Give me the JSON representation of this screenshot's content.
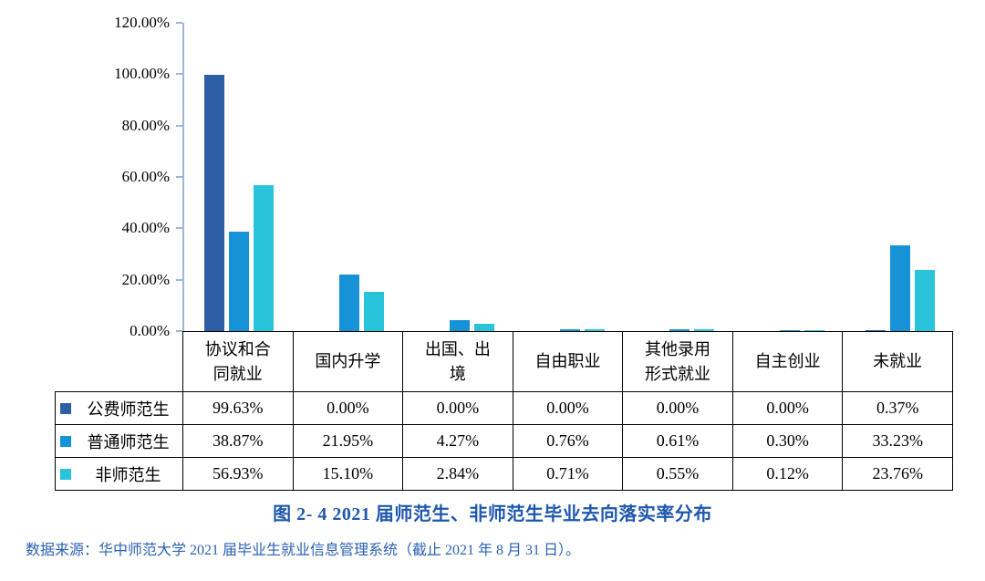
{
  "chart_data": {
    "type": "bar",
    "title": "图 2- 4  2021 届师范生、非师范生毕业去向落实率分布",
    "categories": [
      "协议和合同就业",
      "国内升学",
      "出国、出境",
      "自由职业",
      "其他录用形式就业",
      "自主创业",
      "未就业"
    ],
    "series": [
      {
        "name": "公费师范生",
        "color": "#2E5EA6",
        "values": [
          99.63,
          0.0,
          0.0,
          0.0,
          0.0,
          0.0,
          0.37
        ]
      },
      {
        "name": "普通师范生",
        "color": "#1693D6",
        "values": [
          38.87,
          21.95,
          4.27,
          0.76,
          0.61,
          0.3,
          33.23
        ]
      },
      {
        "name": "非师范生",
        "color": "#29C4DC",
        "values": [
          56.93,
          15.1,
          2.84,
          0.71,
          0.55,
          0.12,
          23.76
        ]
      }
    ],
    "ylim": [
      0,
      120
    ],
    "ytick_labels": [
      "120.00%",
      "100.00%",
      "80.00%",
      "60.00%",
      "40.00%",
      "20.00%",
      "0.00%"
    ],
    "grid": false,
    "legend_position": "table-rows-left"
  },
  "table": {
    "column_headers": [
      "协议和合\n同就业",
      "国内升学",
      "出国、出\n境",
      "自由职业",
      "其他录用\n形式就业",
      "自主创业",
      "未就业"
    ],
    "rows": [
      {
        "label": "公费师范生",
        "values": [
          "99.63%",
          "0.00%",
          "0.00%",
          "0.00%",
          "0.00%",
          "0.00%",
          "0.37%"
        ]
      },
      {
        "label": "普通师范生",
        "values": [
          "38.87%",
          "21.95%",
          "4.27%",
          "0.76%",
          "0.61%",
          "0.30%",
          "33.23%"
        ]
      },
      {
        "label": "非师范生",
        "values": [
          "56.93%",
          "15.10%",
          "2.84%",
          "0.71%",
          "0.55%",
          "0.12%",
          "23.76%"
        ]
      }
    ]
  },
  "caption": "图 2- 4  2021 届师范生、非师范生毕业去向落实率分布",
  "source": "数据来源：华中师范大学 2021 届毕业生就业信息管理系统（截止 2021 年 8 月 31 日）。"
}
